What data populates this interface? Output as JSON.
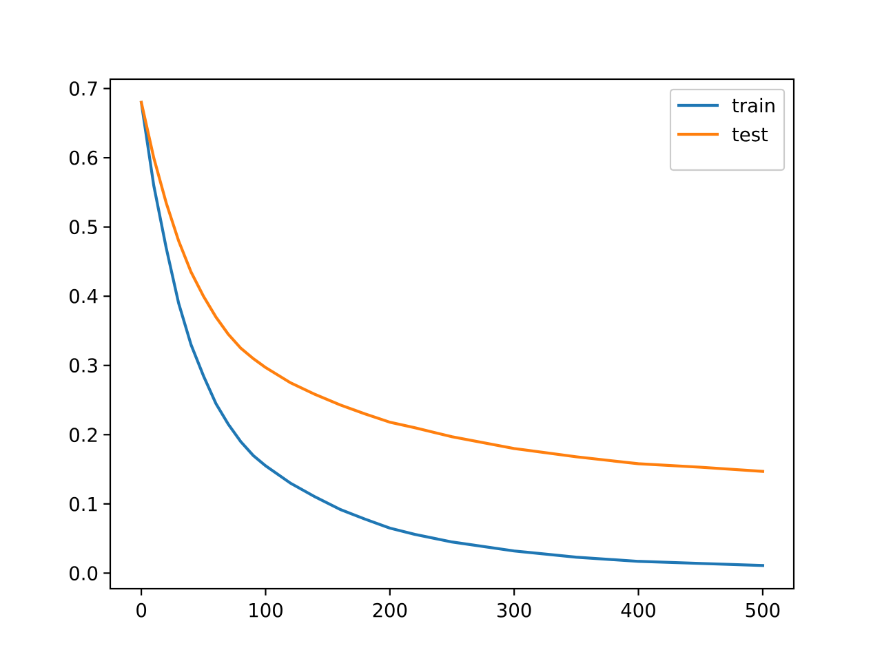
{
  "chart_data": {
    "type": "line",
    "x": [
      0,
      10,
      20,
      30,
      40,
      50,
      60,
      70,
      80,
      90,
      100,
      120,
      140,
      160,
      180,
      200,
      220,
      250,
      300,
      350,
      400,
      450,
      500
    ],
    "series": [
      {
        "name": "train",
        "color": "#1f77b4",
        "values": [
          0.68,
          0.56,
          0.47,
          0.39,
          0.33,
          0.285,
          0.245,
          0.215,
          0.19,
          0.17,
          0.155,
          0.13,
          0.11,
          0.092,
          0.078,
          0.065,
          0.056,
          0.045,
          0.032,
          0.023,
          0.017,
          0.014,
          0.011
        ]
      },
      {
        "name": "test",
        "color": "#ff7f0e",
        "values": [
          0.68,
          0.6,
          0.535,
          0.48,
          0.435,
          0.4,
          0.37,
          0.345,
          0.325,
          0.31,
          0.297,
          0.275,
          0.258,
          0.243,
          0.23,
          0.218,
          0.21,
          0.197,
          0.18,
          0.168,
          0.158,
          0.153,
          0.147
        ]
      }
    ],
    "xlim": [
      -25,
      525
    ],
    "xticks": [
      0,
      100,
      200,
      300,
      400,
      500
    ],
    "ylim": [
      -0.0225,
      0.7135
    ],
    "yticks": [
      {
        "value": 0,
        "label": "0.0"
      },
      0.1,
      0.2,
      0.3,
      0.4,
      0.5,
      0.6,
      0.7
    ],
    "legend": "upper right",
    "grid": false
  }
}
